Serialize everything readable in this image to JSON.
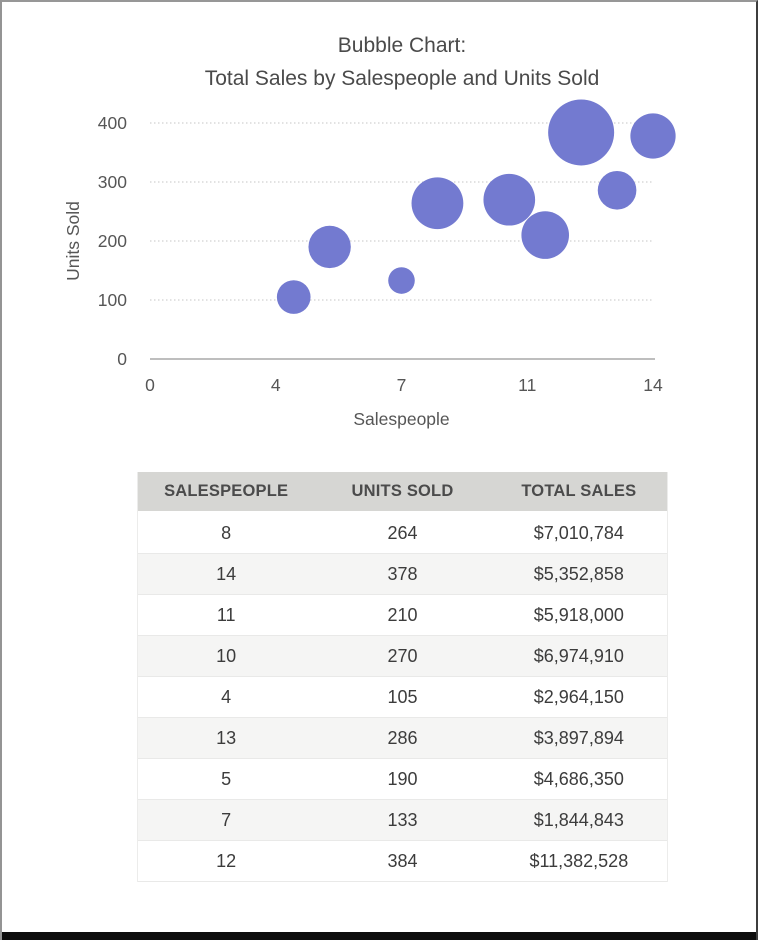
{
  "chart_data": {
    "type": "bubble",
    "title_line1": "Bubble Chart:",
    "title_line2": "Total Sales by Salespeople and Units Sold",
    "xlabel": "Salespeople",
    "ylabel": "Units Sold",
    "xlim": [
      0,
      14
    ],
    "ylim": [
      0,
      400
    ],
    "x_ticks": [
      {
        "value": 0,
        "label": "0"
      },
      {
        "value": 3.5,
        "label": "4"
      },
      {
        "value": 7,
        "label": "7"
      },
      {
        "value": 10.5,
        "label": "11"
      },
      {
        "value": 14,
        "label": "14"
      }
    ],
    "y_ticks": [
      {
        "value": 0,
        "label": "0"
      },
      {
        "value": 100,
        "label": "100"
      },
      {
        "value": 200,
        "label": "200"
      },
      {
        "value": 300,
        "label": "300"
      },
      {
        "value": 400,
        "label": "400"
      }
    ],
    "grid": "horizontal-dotted",
    "legend": "none",
    "bubble_color": "#737ad0",
    "gridline_color": "#c6c6c6",
    "axis_line_color": "#a8a8a8",
    "tick_label_color": "#565656",
    "size_encoding": "total_sales",
    "points": [
      {
        "salespeople": 8,
        "units_sold": 264,
        "total_sales": 7010784
      },
      {
        "salespeople": 14,
        "units_sold": 378,
        "total_sales": 5352858
      },
      {
        "salespeople": 11,
        "units_sold": 210,
        "total_sales": 5918000
      },
      {
        "salespeople": 10,
        "units_sold": 270,
        "total_sales": 6974910
      },
      {
        "salespeople": 4,
        "units_sold": 105,
        "total_sales": 2964150
      },
      {
        "salespeople": 13,
        "units_sold": 286,
        "total_sales": 3897894
      },
      {
        "salespeople": 5,
        "units_sold": 190,
        "total_sales": 4686350
      },
      {
        "salespeople": 7,
        "units_sold": 133,
        "total_sales": 1844843
      },
      {
        "salespeople": 12,
        "units_sold": 384,
        "total_sales": 11382528
      }
    ]
  },
  "table": {
    "columns": [
      "SALESPEOPLE",
      "UNITS SOLD",
      "TOTAL SALES"
    ],
    "rows": [
      {
        "salespeople": "8",
        "units_sold": "264",
        "total_sales": "$7,010,784"
      },
      {
        "salespeople": "14",
        "units_sold": "378",
        "total_sales": "$5,352,858"
      },
      {
        "salespeople": "11",
        "units_sold": "210",
        "total_sales": "$5,918,000"
      },
      {
        "salespeople": "10",
        "units_sold": "270",
        "total_sales": "$6,974,910"
      },
      {
        "salespeople": "4",
        "units_sold": "105",
        "total_sales": "$2,964,150"
      },
      {
        "salespeople": "13",
        "units_sold": "286",
        "total_sales": "$3,897,894"
      },
      {
        "salespeople": "5",
        "units_sold": "190",
        "total_sales": "$4,686,350"
      },
      {
        "salespeople": "7",
        "units_sold": "133",
        "total_sales": "$1,844,843"
      },
      {
        "salespeople": "12",
        "units_sold": "384",
        "total_sales": "$11,382,528"
      }
    ]
  }
}
